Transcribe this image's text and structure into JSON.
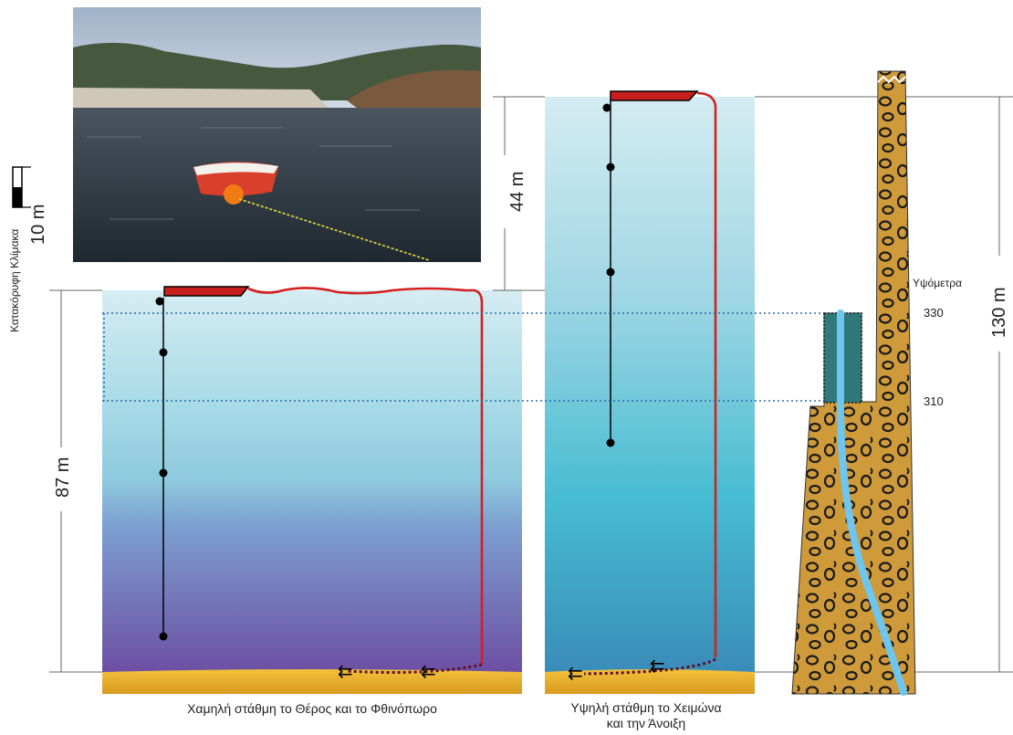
{
  "scale_label": "Κατακόρυφη Κλίμακα",
  "scale_value": "10 m",
  "depth_left": "87 m",
  "depth_right": "44 m",
  "dam_height": "130 m",
  "elevation_title": "Υψόμετρα",
  "elevation_high": "330",
  "elevation_low": "310",
  "caption_low": "Χαμηλή στάθμη το Θέρος και το Φθινόπωρο",
  "caption_high_line1": "Υψηλή  στάθμη το Χειμώνα",
  "caption_high_line2": "και την Άνοιξη",
  "colors": {
    "mooring_line": "#d42020",
    "buoy": "#c81e1e",
    "sediment": "#e6a81e",
    "dam_fill": "#cf9a3a",
    "intake": "#2f7a78",
    "outlet_flow": "#6ec6ee",
    "dotted_level": "#2a6aa8"
  },
  "photo_description": "boat-on-reservoir-photo"
}
